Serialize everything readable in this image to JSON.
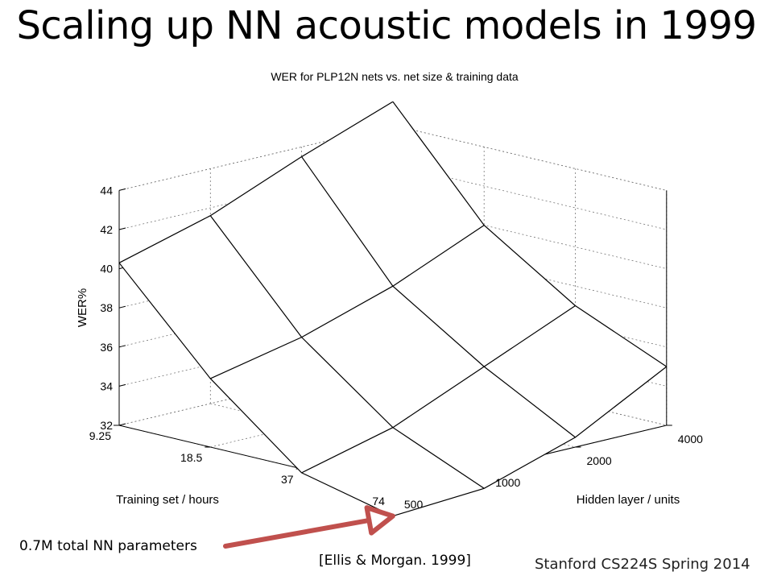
{
  "slide": {
    "title": "Scaling up NN acoustic models in 1999",
    "annotation_params": "0.7M total NN parameters",
    "citation": "[Ellis & Morgan. 1999]",
    "footer": "Stanford CS224S Spring 2014"
  },
  "chart_data": {
    "type": "surface",
    "title": "WER for PLP12N nets vs. net size & training data",
    "zlabel": "WER%",
    "xlabel": "Hidden layer / units",
    "ylabel": "Training set / hours",
    "zlim": [
      32,
      44
    ],
    "z_ticks": [
      "32",
      "34",
      "36",
      "38",
      "40",
      "42",
      "44"
    ],
    "hidden_units": [
      "500",
      "1000",
      "2000",
      "4000"
    ],
    "training_hours": [
      "9.25",
      "18.5",
      "37",
      "74"
    ],
    "wer": [
      [
        40.3,
        41.6,
        43.5,
        45.2
      ],
      [
        35.5,
        36.5,
        38.0,
        40.0
      ],
      [
        31.8,
        33.0,
        35.0,
        37.0
      ],
      [
        30.7,
        31.0,
        32.5,
        35.0
      ]
    ],
    "colors": {
      "mesh": "#000000",
      "grid": "#777777",
      "arrow": "#c0504d"
    }
  }
}
